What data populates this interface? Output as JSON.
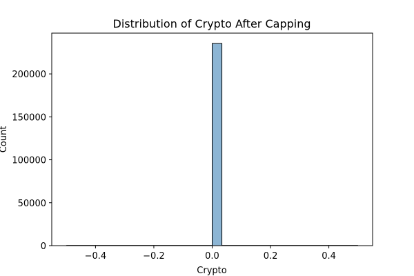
{
  "chart_data": {
    "type": "bar",
    "title": "Distribution of Crypto After Capping",
    "xlabel": "Crypto",
    "ylabel": "Count",
    "xlim": [
      -0.55,
      0.55
    ],
    "ylim": [
      0,
      247500
    ],
    "x_ticks": [
      -0.4,
      -0.2,
      0.0,
      0.2,
      0.4
    ],
    "x_tick_labels": [
      "−0.4",
      "−0.2",
      "0.0",
      "0.2",
      "0.4"
    ],
    "y_ticks": [
      0,
      50000,
      100000,
      150000,
      200000
    ],
    "y_tick_labels": [
      "0",
      "50000",
      "100000",
      "150000",
      "200000"
    ],
    "bins": [
      {
        "x0": 0.0,
        "x1": 0.0333,
        "count": 235500
      }
    ],
    "baseline_range": [
      -0.5,
      0.5
    ],
    "grid": false,
    "colors": {
      "bar_fill": "#8cb5d4",
      "bar_edge": "#000000",
      "axis": "#000000",
      "baseline": "#4c4c4c"
    }
  }
}
